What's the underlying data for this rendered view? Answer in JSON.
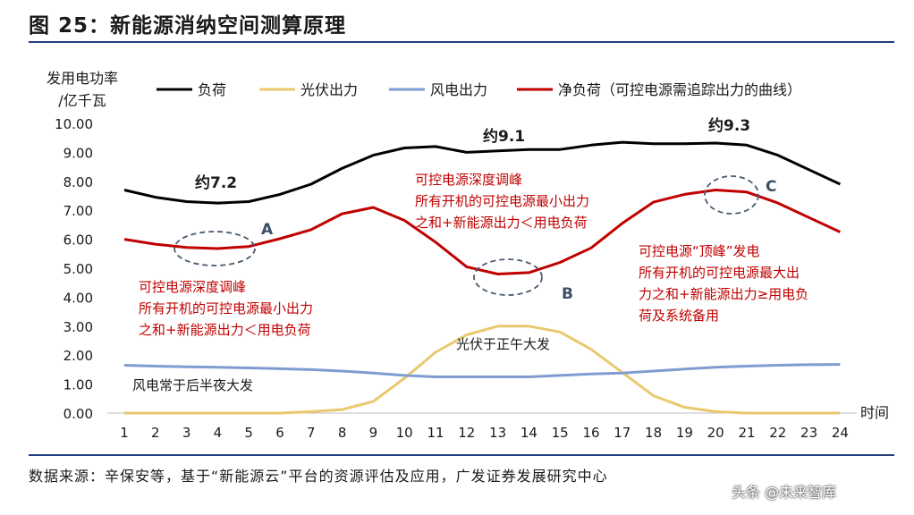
{
  "page": {
    "title": "图 25：新能源消纳空间测算原理",
    "source": "数据来源：辛保安等，基于“新能源云”平台的资源评估及应用，广发证券发展研究中心",
    "watermark": "头条 @未来智库"
  },
  "chart_data": {
    "type": "line",
    "ylabel_line1": "发用电功率",
    "ylabel_line2": "/亿千瓦",
    "xlabel": "时间",
    "ylim": [
      0,
      10
    ],
    "yticks": [
      "0.00",
      "1.00",
      "2.00",
      "3.00",
      "4.00",
      "5.00",
      "6.00",
      "7.00",
      "8.00",
      "9.00",
      "10.00"
    ],
    "x": [
      1,
      2,
      3,
      4,
      5,
      6,
      7,
      8,
      9,
      10,
      11,
      12,
      13,
      14,
      15,
      16,
      17,
      18,
      19,
      20,
      21,
      22,
      23,
      24
    ],
    "grid": false,
    "legend_position": "top",
    "series": [
      {
        "name": "负荷",
        "color": "#000000",
        "values": [
          7.7,
          7.45,
          7.3,
          7.25,
          7.3,
          7.55,
          7.9,
          8.45,
          8.9,
          9.15,
          9.2,
          9.0,
          9.05,
          9.1,
          9.1,
          9.25,
          9.35,
          9.3,
          9.3,
          9.32,
          9.25,
          8.9,
          8.4,
          7.9
        ]
      },
      {
        "name": "光伏出力",
        "color": "#e8c96e",
        "values": [
          0.0,
          0.0,
          0.0,
          0.0,
          0.0,
          0.0,
          0.05,
          0.12,
          0.4,
          1.2,
          2.1,
          2.7,
          3.0,
          3.0,
          2.8,
          2.2,
          1.4,
          0.6,
          0.2,
          0.05,
          0.0,
          0.0,
          0.0,
          0.0
        ]
      },
      {
        "name": "风电出力",
        "color": "#7f9cd0",
        "values": [
          1.65,
          1.62,
          1.6,
          1.58,
          1.56,
          1.53,
          1.5,
          1.45,
          1.38,
          1.3,
          1.25,
          1.25,
          1.25,
          1.25,
          1.3,
          1.35,
          1.38,
          1.45,
          1.52,
          1.58,
          1.62,
          1.65,
          1.67,
          1.68
        ]
      },
      {
        "name": "净负荷（可控电源需追踪出力的曲线）",
        "color": "#c00000",
        "values": [
          6.0,
          5.83,
          5.72,
          5.68,
          5.75,
          6.02,
          6.33,
          6.88,
          7.1,
          6.65,
          5.9,
          5.05,
          4.8,
          4.85,
          5.2,
          5.7,
          6.55,
          7.28,
          7.55,
          7.7,
          7.63,
          7.25,
          6.75,
          6.25
        ]
      }
    ],
    "annotations": {
      "approx_a": "约7.2",
      "approx_b": "约9.1",
      "approx_c": "约9.3",
      "label_a": "A",
      "label_b": "B",
      "label_c": "C",
      "note_left": [
        "可控电源深度调峰",
        "所有开机的可控电源最小出力",
        "之和+新能源出力＜用电负荷"
      ],
      "note_mid": [
        "可控电源深度调峰",
        "所有开机的可控电源最小出力",
        "之和+新能源出力＜用电负荷"
      ],
      "note_right": [
        "可控电源“顶峰”发电",
        "所有开机的可控电源最大出",
        "力之和+新能源出力≥用电负",
        "荷及系统备用"
      ],
      "note_pv": "光伏于正午大发",
      "note_wind": "风电常于后半夜大发"
    }
  }
}
